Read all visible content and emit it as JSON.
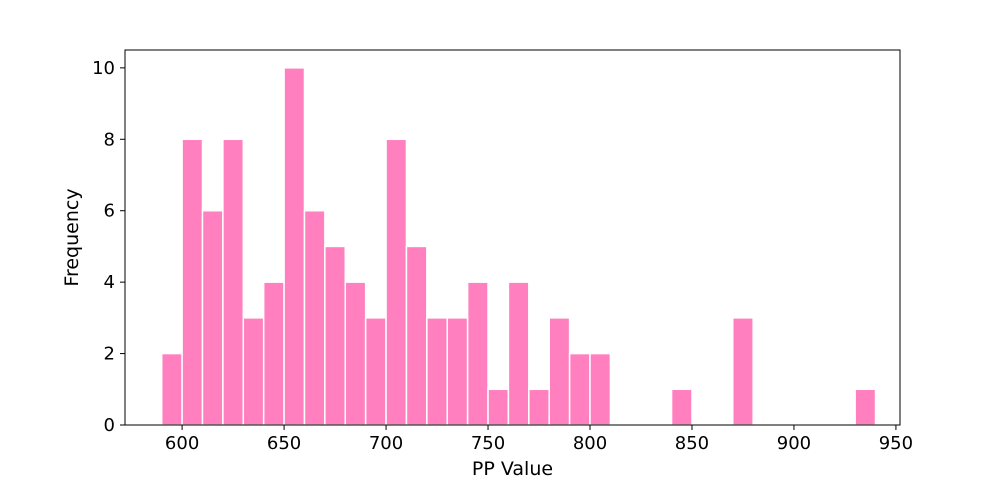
{
  "chart_data": {
    "type": "bar",
    "subtype": "histogram",
    "title": "",
    "xlabel": "PP Value",
    "ylabel": "Frequency",
    "xlim": [
      572,
      952
    ],
    "ylim": [
      0,
      10.5
    ],
    "bin_width": 10,
    "bins": [
      {
        "start": 590,
        "end": 600,
        "count": 2
      },
      {
        "start": 600,
        "end": 610,
        "count": 8
      },
      {
        "start": 610,
        "end": 620,
        "count": 6
      },
      {
        "start": 620,
        "end": 630,
        "count": 8
      },
      {
        "start": 630,
        "end": 640,
        "count": 3
      },
      {
        "start": 640,
        "end": 650,
        "count": 4
      },
      {
        "start": 650,
        "end": 660,
        "count": 10
      },
      {
        "start": 660,
        "end": 670,
        "count": 6
      },
      {
        "start": 670,
        "end": 680,
        "count": 5
      },
      {
        "start": 680,
        "end": 690,
        "count": 4
      },
      {
        "start": 690,
        "end": 700,
        "count": 3
      },
      {
        "start": 700,
        "end": 710,
        "count": 8
      },
      {
        "start": 710,
        "end": 720,
        "count": 5
      },
      {
        "start": 720,
        "end": 730,
        "count": 3
      },
      {
        "start": 730,
        "end": 740,
        "count": 3
      },
      {
        "start": 740,
        "end": 750,
        "count": 4
      },
      {
        "start": 750,
        "end": 760,
        "count": 1
      },
      {
        "start": 760,
        "end": 770,
        "count": 4
      },
      {
        "start": 770,
        "end": 780,
        "count": 1
      },
      {
        "start": 780,
        "end": 790,
        "count": 3
      },
      {
        "start": 790,
        "end": 800,
        "count": 2
      },
      {
        "start": 800,
        "end": 810,
        "count": 2
      },
      {
        "start": 840,
        "end": 850,
        "count": 1
      },
      {
        "start": 870,
        "end": 880,
        "count": 3
      },
      {
        "start": 930,
        "end": 940,
        "count": 1
      }
    ],
    "x_ticks": [
      600,
      650,
      700,
      750,
      800,
      850,
      900,
      950
    ],
    "y_ticks": [
      0,
      2,
      4,
      6,
      8,
      10
    ],
    "grid": false,
    "legend": "none",
    "colors": {
      "bar_fill": "#ff7fbf",
      "bar_edge": "#ffffff",
      "axis": "#000000"
    }
  }
}
